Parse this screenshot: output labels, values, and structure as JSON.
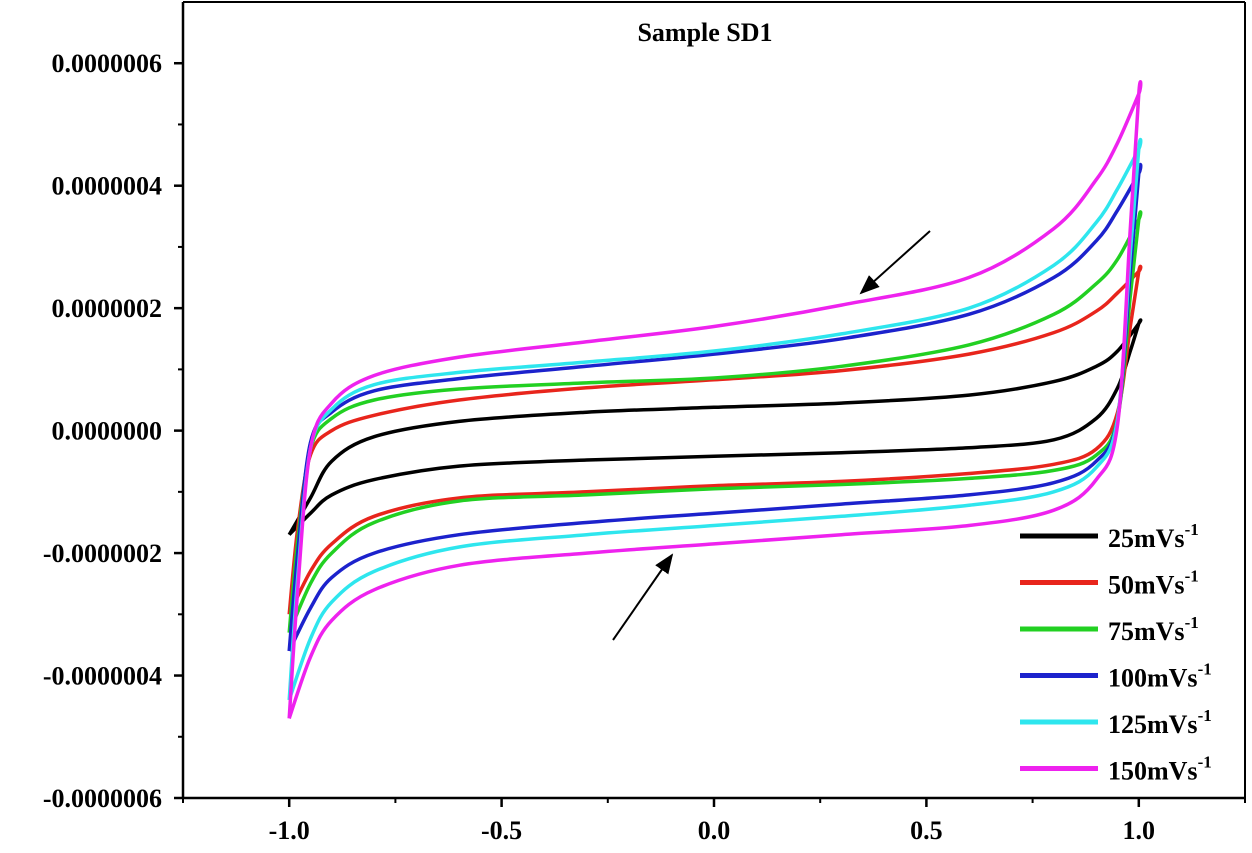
{
  "chart_data": {
    "type": "line",
    "title": "Sample SD1",
    "xlabel": "",
    "ylabel": "",
    "xlim": [
      -1.25,
      1.25
    ],
    "ylim": [
      -6e-07,
      7e-07
    ],
    "xticks": [
      -1.0,
      -0.5,
      0.0,
      0.5,
      1.0
    ],
    "xtick_labels": [
      "-1.0",
      "-0.5",
      "0.0",
      "0.5",
      "1.0"
    ],
    "yticks": [
      -6e-07,
      -4e-07,
      -2e-07,
      0.0,
      2e-07,
      4e-07,
      6e-07
    ],
    "ytick_labels": [
      "-0.0000006",
      "-0.0000004",
      "-0.0000002",
      "0.0000000",
      "0.0000002",
      "0.0000004",
      "0.0000006"
    ],
    "grid": false,
    "legend_position": "bottom-right",
    "series": [
      {
        "name": "25mVs",
        "name_sup": "-1",
        "color": "#000000",
        "x": [
          -1.0,
          -0.95,
          -0.9,
          -0.8,
          -0.6,
          -0.3,
          0.0,
          0.3,
          0.6,
          0.8,
          0.9,
          0.95,
          1.0,
          1.0,
          0.98,
          0.95,
          0.9,
          0.8,
          0.6,
          0.3,
          0.0,
          -0.3,
          -0.6,
          -0.8,
          -0.9,
          -0.95,
          -1.0
        ],
        "y": [
          -1.7e-07,
          -1.1e-07,
          -5e-08,
          -1e-08,
          1.5e-08,
          3e-08,
          3.8e-08,
          4.5e-08,
          5.8e-08,
          8e-08,
          1.05e-07,
          1.3e-07,
          1.75e-07,
          1.75e-07,
          1.3e-07,
          7e-08,
          2e-08,
          -1.5e-08,
          -2.8e-08,
          -3.6e-08,
          -4.2e-08,
          -4.8e-08,
          -5.8e-08,
          -8e-08,
          -1.05e-07,
          -1.35e-07,
          -1.7e-07
        ]
      },
      {
        "name": "50mVs",
        "name_sup": "-1",
        "color": "#e8251c",
        "x": [
          -1.0,
          -0.98,
          -0.95,
          -0.9,
          -0.8,
          -0.6,
          -0.3,
          0.0,
          0.3,
          0.6,
          0.8,
          0.9,
          0.95,
          1.0,
          1.0,
          0.98,
          0.95,
          0.9,
          0.8,
          0.6,
          0.3,
          0.0,
          -0.3,
          -0.6,
          -0.8,
          -0.9,
          -0.95,
          -1.0
        ],
        "y": [
          -3e-07,
          -1.6e-07,
          -4e-08,
          0.0,
          2.5e-08,
          5e-08,
          7e-08,
          8.3e-08,
          9.8e-08,
          1.25e-07,
          1.6e-07,
          1.95e-07,
          2.25e-07,
          2.6e-07,
          2.6e-07,
          1.7e-07,
          3e-08,
          -3e-08,
          -5.5e-08,
          -7e-08,
          -8.3e-08,
          -9e-08,
          -1e-07,
          -1.1e-07,
          -1.4e-07,
          -1.85e-07,
          -2.3e-07,
          -3e-07
        ]
      },
      {
        "name": "75mVs",
        "name_sup": "-1",
        "color": "#22d022",
        "x": [
          -1.0,
          -0.98,
          -0.95,
          -0.9,
          -0.8,
          -0.6,
          -0.3,
          0.0,
          0.3,
          0.6,
          0.8,
          0.9,
          0.95,
          1.0,
          1.0,
          0.98,
          0.95,
          0.9,
          0.8,
          0.6,
          0.3,
          0.0,
          -0.3,
          -0.6,
          -0.8,
          -0.9,
          -0.95,
          -1.0
        ],
        "y": [
          -3.3e-07,
          -1.8e-07,
          -3e-08,
          2e-08,
          5e-08,
          6.8e-08,
          7.8e-08,
          8.6e-08,
          1.05e-07,
          1.4e-07,
          1.9e-07,
          2.4e-07,
          2.8e-07,
          3.45e-07,
          3.45e-07,
          2.2e-07,
          2e-08,
          -4e-08,
          -6.5e-08,
          -7.8e-08,
          -8.8e-08,
          -9.5e-08,
          -1.05e-07,
          -1.15e-07,
          -1.5e-07,
          -2e-07,
          -2.5e-07,
          -3.3e-07
        ]
      },
      {
        "name": "100mVs",
        "name_sup": "-1",
        "color": "#1c22cc",
        "x": [
          -1.0,
          -0.98,
          -0.95,
          -0.9,
          -0.8,
          -0.6,
          -0.3,
          0.0,
          0.3,
          0.6,
          0.8,
          0.9,
          0.95,
          1.0,
          1.0,
          0.98,
          0.95,
          0.9,
          0.8,
          0.6,
          0.3,
          0.0,
          -0.3,
          -0.6,
          -0.8,
          -0.9,
          -0.95,
          -1.0
        ],
        "y": [
          -3.6e-07,
          -2e-07,
          -2e-08,
          3e-08,
          6.5e-08,
          8.5e-08,
          1.05e-07,
          1.25e-07,
          1.5e-07,
          1.9e-07,
          2.5e-07,
          3.1e-07,
          3.6e-07,
          4.2e-07,
          4.2e-07,
          2.6e-07,
          2e-08,
          -5e-08,
          -8.5e-08,
          -1.05e-07,
          -1.2e-07,
          -1.35e-07,
          -1.5e-07,
          -1.7e-07,
          -2e-07,
          -2.4e-07,
          -2.9e-07,
          -3.6e-07
        ]
      },
      {
        "name": "125mVs",
        "name_sup": "-1",
        "color": "#2ee6ee",
        "x": [
          -1.0,
          -0.98,
          -0.95,
          -0.9,
          -0.8,
          -0.6,
          -0.3,
          0.0,
          0.3,
          0.6,
          0.8,
          0.9,
          0.95,
          1.0,
          1.0,
          0.98,
          0.95,
          0.9,
          0.8,
          0.6,
          0.3,
          0.0,
          -0.3,
          -0.6,
          -0.8,
          -0.9,
          -0.95,
          -1.0
        ],
        "y": [
          -4.4e-07,
          -2.4e-07,
          -3e-08,
          3.5e-08,
          7.5e-08,
          9.5e-08,
          1.12e-07,
          1.3e-07,
          1.58e-07,
          2e-07,
          2.7e-07,
          3.4e-07,
          3.95e-07,
          4.6e-07,
          4.6e-07,
          2.9e-07,
          2e-08,
          -6e-08,
          -1e-07,
          -1.22e-07,
          -1.4e-07,
          -1.55e-07,
          -1.7e-07,
          -1.9e-07,
          -2.3e-07,
          -2.8e-07,
          -3.4e-07,
          -4.4e-07
        ]
      },
      {
        "name": "150mVs",
        "name_sup": "-1",
        "color": "#ee22ee",
        "x": [
          -1.0,
          -0.98,
          -0.95,
          -0.9,
          -0.8,
          -0.6,
          -0.3,
          0.0,
          0.3,
          0.6,
          0.8,
          0.9,
          0.95,
          1.0,
          1.0,
          0.98,
          0.95,
          0.9,
          0.8,
          0.6,
          0.3,
          0.0,
          -0.3,
          -0.6,
          -0.8,
          -0.9,
          -0.95,
          -1.0
        ],
        "y": [
          -4.7e-07,
          -2.6e-07,
          -3e-08,
          4.5e-08,
          9e-08,
          1.2e-07,
          1.45e-07,
          1.7e-07,
          2.05e-07,
          2.5e-07,
          3.3e-07,
          4.1e-07,
          4.7e-07,
          5.5e-07,
          5.5e-07,
          3.3e-07,
          1e-08,
          -8e-08,
          -1.3e-07,
          -1.55e-07,
          -1.7e-07,
          -1.85e-07,
          -2e-07,
          -2.2e-07,
          -2.6e-07,
          -3.1e-07,
          -3.7e-07,
          -4.7e-07
        ]
      }
    ]
  }
}
